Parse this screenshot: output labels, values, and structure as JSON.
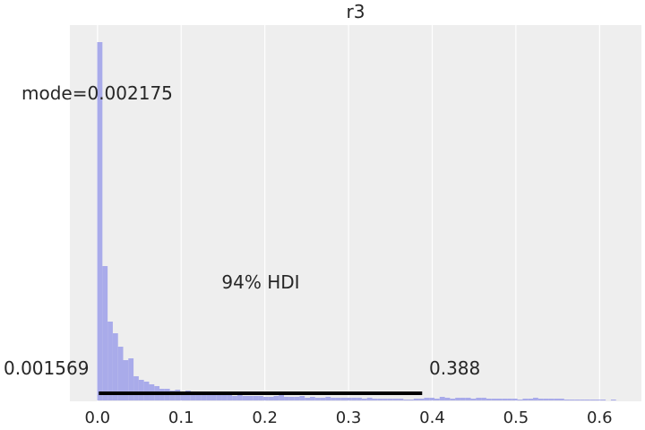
{
  "chart_data": {
    "type": "histogram",
    "title": "r3",
    "xlabel": "",
    "ylabel": "",
    "xlim": [
      -0.033,
      0.65
    ],
    "grid": true,
    "bin_width": 0.0062,
    "x_start": -0.0003,
    "x_ticks": [
      "0.0",
      "0.1",
      "0.2",
      "0.3",
      "0.4",
      "0.5",
      "0.6"
    ],
    "x_tick_values": [
      0.0,
      0.1,
      0.2,
      0.3,
      0.4,
      0.5,
      0.6
    ],
    "counts": [
      400,
      150,
      88,
      75,
      60,
      45,
      47,
      27,
      23,
      21,
      18,
      16,
      13,
      13,
      11,
      12,
      10,
      11,
      7,
      10,
      8,
      9,
      7,
      8,
      6,
      7,
      5,
      6,
      5,
      5,
      5,
      5,
      4,
      4,
      5,
      6,
      4,
      4,
      4,
      5,
      3,
      4,
      3,
      3,
      4,
      3,
      3,
      3,
      3,
      3,
      3,
      2,
      3,
      2,
      2,
      2,
      2,
      2,
      2,
      1,
      1,
      2,
      2,
      3,
      3,
      2,
      4,
      3,
      2,
      3,
      3,
      3,
      2,
      3,
      3,
      2,
      2,
      2,
      2,
      2,
      2,
      1,
      2,
      2,
      3,
      2,
      2,
      2,
      2,
      2,
      1,
      1,
      1,
      1,
      1,
      1,
      1,
      1,
      0,
      1
    ],
    "color": "#a9abea",
    "hdi": {
      "label": "94% HDI",
      "low": 0.001569,
      "high": 0.388,
      "low_label": "0.001569",
      "high_label": "0.388"
    },
    "mode": {
      "value": 0.002175,
      "label": "mode=0.002175"
    }
  }
}
